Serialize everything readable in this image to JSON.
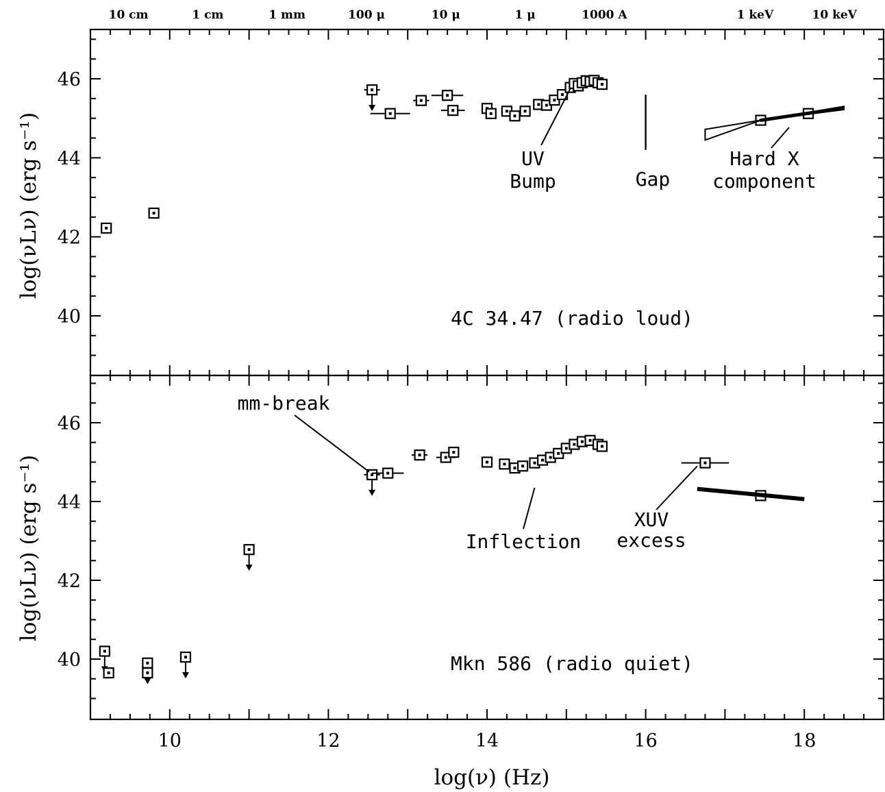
{
  "chart_data": [
    {
      "type": "scatter",
      "panel": "top",
      "title": "4C 34.47 (radio loud)",
      "xlabel": "log(ν) (Hz)",
      "ylabel": "log(νLν) (erg s⁻¹)",
      "xlim": [
        9.0,
        19.0
      ],
      "ylim": [
        38.5,
        47.3
      ],
      "yticks": [
        "40",
        "42",
        "44",
        "46"
      ],
      "wavelength_labels": [
        {
          "text": "10 cm",
          "x": 9.48
        },
        {
          "text": "1 cm",
          "x": 10.48
        },
        {
          "text": "1 mm",
          "x": 11.48
        },
        {
          "text": "100 μ",
          "x": 12.48
        },
        {
          "text": "10 μ",
          "x": 13.48
        },
        {
          "text": "1 μ",
          "x": 14.48
        },
        {
          "text": "1000 A",
          "x": 15.48
        },
        {
          "text": "1 keV",
          "x": 17.38
        },
        {
          "text": "10 keV",
          "x": 18.38
        }
      ],
      "points": [
        {
          "x": 9.2,
          "y": 42.22
        },
        {
          "x": 9.8,
          "y": 42.6
        },
        {
          "x": 12.55,
          "y": 45.72,
          "upper_limit": true,
          "xerr": 0.1
        },
        {
          "x": 12.78,
          "y": 45.12,
          "xerr": 0.25
        },
        {
          "x": 13.17,
          "y": 45.45,
          "xerr": 0.1
        },
        {
          "x": 13.5,
          "y": 45.58,
          "xerr": 0.2
        },
        {
          "x": 13.57,
          "y": 45.2,
          "xerr": 0.15
        },
        {
          "x": 14.0,
          "y": 45.25
        },
        {
          "x": 14.05,
          "y": 45.12
        },
        {
          "x": 14.25,
          "y": 45.18
        },
        {
          "x": 14.35,
          "y": 45.06
        },
        {
          "x": 14.48,
          "y": 45.18
        },
        {
          "x": 14.65,
          "y": 45.35
        },
        {
          "x": 14.75,
          "y": 45.33
        },
        {
          "x": 14.85,
          "y": 45.46
        },
        {
          "x": 14.95,
          "y": 45.6
        },
        {
          "x": 15.05,
          "y": 45.78
        },
        {
          "x": 15.1,
          "y": 45.88
        },
        {
          "x": 15.15,
          "y": 45.82
        },
        {
          "x": 15.2,
          "y": 45.9
        },
        {
          "x": 15.25,
          "y": 45.95
        },
        {
          "x": 15.3,
          "y": 45.93
        },
        {
          "x": 15.35,
          "y": 45.96
        },
        {
          "x": 15.4,
          "y": 45.9
        },
        {
          "x": 15.45,
          "y": 45.86
        },
        {
          "x": 17.45,
          "y": 44.95
        },
        {
          "x": 18.05,
          "y": 45.12
        }
      ],
      "xray_bowtie": [
        {
          "x": 16.75,
          "y_low": 44.45,
          "y_high": 44.72
        },
        {
          "x": 17.45,
          "y": 44.95
        },
        {
          "x": 18.5,
          "y_low": 45.22,
          "y_high": 45.3
        }
      ],
      "annotations": [
        "UV",
        "Bump",
        "Gap",
        "Hard X",
        "component"
      ]
    },
    {
      "type": "scatter",
      "panel": "bottom",
      "title": "Mkn 586 (radio quiet)",
      "xlabel": "log(ν) (Hz)",
      "ylabel": "log(νLν) (erg s⁻¹)",
      "xlim": [
        9.0,
        19.0
      ],
      "ylim": [
        38.5,
        47.3
      ],
      "xticks": [
        "10",
        "12",
        "14",
        "16",
        "18"
      ],
      "yticks": [
        "40",
        "42",
        "44",
        "46"
      ],
      "points": [
        {
          "x": 9.18,
          "y": 40.2,
          "upper_limit": true
        },
        {
          "x": 9.23,
          "y": 39.65
        },
        {
          "x": 9.72,
          "y": 39.9,
          "upper_limit": true
        },
        {
          "x": 9.72,
          "y": 39.65
        },
        {
          "x": 10.2,
          "y": 40.05,
          "upper_limit": true
        },
        {
          "x": 11.0,
          "y": 42.78,
          "upper_limit": true
        },
        {
          "x": 12.55,
          "y": 44.68,
          "upper_limit": true,
          "xerr": 0.1
        },
        {
          "x": 12.75,
          "y": 44.72,
          "xerr": 0.2
        },
        {
          "x": 13.15,
          "y": 45.18,
          "xerr": 0.1
        },
        {
          "x": 13.48,
          "y": 45.12,
          "xerr": 0.12
        },
        {
          "x": 13.58,
          "y": 45.25
        },
        {
          "x": 14.0,
          "y": 45.0
        },
        {
          "x": 14.22,
          "y": 44.95
        },
        {
          "x": 14.35,
          "y": 44.85
        },
        {
          "x": 14.45,
          "y": 44.9
        },
        {
          "x": 14.6,
          "y": 44.98
        },
        {
          "x": 14.7,
          "y": 45.05
        },
        {
          "x": 14.8,
          "y": 45.12
        },
        {
          "x": 14.9,
          "y": 45.22
        },
        {
          "x": 15.0,
          "y": 45.35
        },
        {
          "x": 15.1,
          "y": 45.45
        },
        {
          "x": 15.2,
          "y": 45.52
        },
        {
          "x": 15.3,
          "y": 45.55
        },
        {
          "x": 15.4,
          "y": 45.45
        },
        {
          "x": 15.45,
          "y": 45.4
        },
        {
          "x": 16.75,
          "y": 44.98,
          "xerr": 0.3
        },
        {
          "x": 17.45,
          "y": 44.15
        }
      ],
      "xray_powerlaw": [
        {
          "x": 16.65,
          "y": 44.32
        },
        {
          "x": 18.0,
          "y": 44.06
        }
      ],
      "annotations": [
        "mm-break",
        "Inflection",
        "XUV",
        "excess"
      ]
    }
  ]
}
